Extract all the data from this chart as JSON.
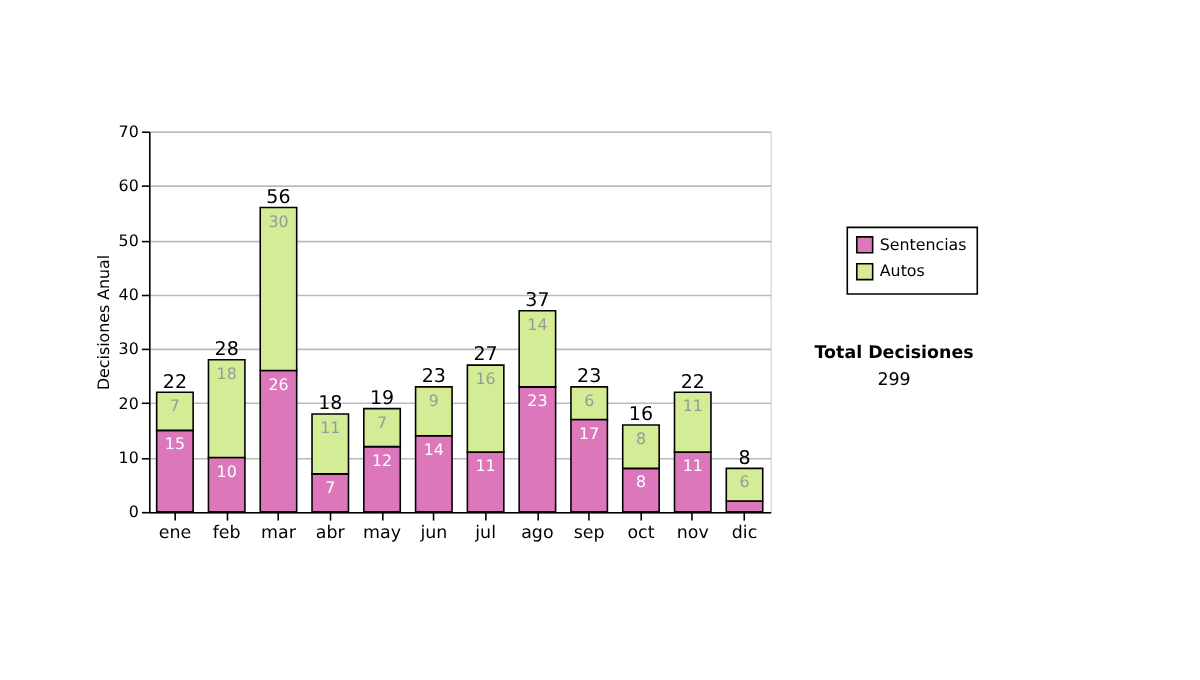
{
  "chart_data": {
    "type": "bar",
    "stacked": true,
    "ylabel": "Decisiones Anual",
    "categories": [
      "ene",
      "feb",
      "mar",
      "abr",
      "may",
      "jun",
      "jul",
      "ago",
      "sep",
      "oct",
      "nov",
      "dic"
    ],
    "series": [
      {
        "name": "Sentencias",
        "color": "#dd77bb",
        "values": [
          15,
          10,
          26,
          7,
          12,
          14,
          11,
          23,
          17,
          8,
          11,
          2
        ],
        "value_labels": [
          "15",
          "10",
          "26",
          "7",
          "12",
          "14",
          "11",
          "23",
          "17",
          "8",
          "11",
          null
        ]
      },
      {
        "name": "Autos",
        "color": "#d4ec95",
        "values": [
          7,
          18,
          30,
          11,
          7,
          9,
          16,
          14,
          6,
          8,
          11,
          6
        ],
        "value_labels": [
          "7",
          "18",
          "30",
          "11",
          "7",
          "9",
          "16",
          "14",
          "6",
          "8",
          "11",
          "6"
        ]
      }
    ],
    "totals": [
      "22",
      "28",
      "56",
      "18",
      "19",
      "23",
      "27",
      "37",
      "23",
      "16",
      "22",
      "8"
    ],
    "ylim": [
      0,
      70
    ],
    "yticks": [
      0,
      10,
      20,
      30,
      40,
      50,
      60,
      70
    ],
    "grid": "y",
    "legend": "right",
    "annotations": [
      "Total Decisiones",
      "299"
    ]
  }
}
